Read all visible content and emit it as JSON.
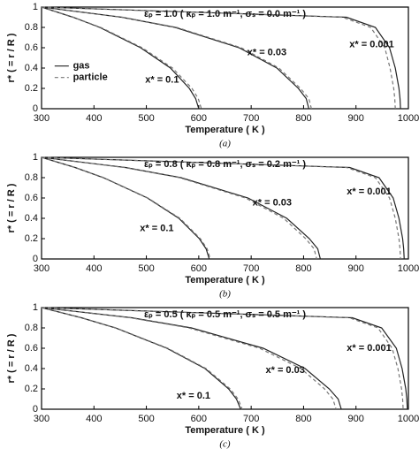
{
  "chart_data": [
    {
      "type": "line",
      "xlabel": "Temperature ( K )",
      "ylabel": "r* ( = r / R )",
      "caption": "(a)",
      "xlim": [
        300,
        1000
      ],
      "ylim": [
        0,
        1
      ],
      "xticks": [
        300,
        400,
        500,
        600,
        700,
        800,
        900,
        1000
      ],
      "yticks": [
        0,
        0.2,
        0.4,
        0.6,
        0.8,
        1
      ],
      "annotations": [
        "εₚ = 1.0 ( κₚ = 1.0 m⁻¹, σₛ = 0.0 m⁻¹ )",
        "x* = 0.1",
        "x* = 0.03",
        "x* = 0.001"
      ],
      "series": [
        {
          "name": "gas",
          "color": "#222222",
          "line_style": "solid",
          "x": [
            300,
            360,
            411,
            489,
            546,
            582,
            594,
            600
          ],
          "values": [
            1,
            0.9,
            0.8,
            0.6,
            0.4,
            0.2,
            0.1,
            0
          ]
        },
        {
          "name": "particle",
          "color": "#777777",
          "line_style": "dashed",
          "x": [
            300,
            361,
            413,
            492,
            550,
            587,
            599,
            605
          ],
          "values": [
            1,
            0.9,
            0.8,
            0.6,
            0.4,
            0.2,
            0.1,
            0
          ]
        },
        {
          "color": "#222222",
          "line_style": "solid",
          "x": [
            300,
            453,
            555,
            677,
            749,
            790,
            805,
            810
          ],
          "values": [
            1,
            0.9,
            0.8,
            0.6,
            0.4,
            0.2,
            0.1,
            0
          ]
        },
        {
          "color": "#777777",
          "line_style": "dashed",
          "x": [
            300,
            455,
            558,
            681,
            753,
            794,
            810,
            815
          ],
          "values": [
            1,
            0.9,
            0.8,
            0.6,
            0.4,
            0.2,
            0.1,
            0
          ]
        },
        {
          "color": "#222222",
          "line_style": "solid",
          "x": [
            300,
            882,
            937,
            964,
            975,
            982,
            984,
            985
          ],
          "values": [
            1,
            0.9,
            0.8,
            0.6,
            0.4,
            0.2,
            0.1,
            0
          ]
        },
        {
          "color": "#777777",
          "line_style": "dashed",
          "x": [
            300,
            874,
            928,
            955,
            965,
            972,
            974,
            975
          ],
          "values": [
            1,
            0.9,
            0.8,
            0.6,
            0.4,
            0.2,
            0.1,
            0
          ]
        }
      ]
    },
    {
      "type": "line",
      "xlabel": "Temperature ( K )",
      "ylabel": "r* ( = r / R )",
      "caption": "(b)",
      "xlim": [
        300,
        1000
      ],
      "ylim": [
        0,
        1
      ],
      "xticks": [
        300,
        400,
        500,
        600,
        700,
        800,
        900,
        1000
      ],
      "yticks": [
        0,
        0.2,
        0.4,
        0.6,
        0.8,
        1
      ],
      "annotations": [
        "εₚ = 0.8 ( κₚ = 0.8 m⁻¹, σₛ = 0.2 m⁻¹ )",
        "x* = 0.1",
        "x* = 0.03",
        "x* = 0.001"
      ],
      "series": [
        {
          "color": "#222222",
          "line_style": "solid",
          "x": [
            300,
            364,
            418,
            502,
            562,
            601,
            614,
            620
          ],
          "values": [
            1,
            0.9,
            0.8,
            0.6,
            0.4,
            0.2,
            0.1,
            0
          ]
        },
        {
          "color": "#777777",
          "line_style": "dashed",
          "x": [
            300,
            364,
            419,
            503,
            564,
            603,
            616,
            622
          ],
          "values": [
            1,
            0.9,
            0.8,
            0.6,
            0.4,
            0.2,
            0.1,
            0
          ]
        },
        {
          "color": "#222222",
          "line_style": "solid",
          "x": [
            300,
            460,
            566,
            694,
            768,
            811,
            827,
            832
          ],
          "values": [
            1,
            0.9,
            0.8,
            0.6,
            0.4,
            0.2,
            0.1,
            0
          ]
        },
        {
          "color": "#777777",
          "line_style": "dashed",
          "x": [
            300,
            458,
            563,
            689,
            762,
            804,
            820,
            825
          ],
          "values": [
            1,
            0.9,
            0.8,
            0.6,
            0.4,
            0.2,
            0.1,
            0
          ]
        },
        {
          "color": "#222222",
          "line_style": "solid",
          "x": [
            300,
            888,
            944,
            971,
            982,
            989,
            991,
            992
          ],
          "values": [
            1,
            0.9,
            0.8,
            0.6,
            0.4,
            0.2,
            0.1,
            0
          ]
        },
        {
          "color": "#777777",
          "line_style": "dashed",
          "x": [
            300,
            882,
            937,
            964,
            975,
            982,
            984,
            985
          ],
          "values": [
            1,
            0.9,
            0.8,
            0.6,
            0.4,
            0.2,
            0.1,
            0
          ]
        }
      ]
    },
    {
      "type": "line",
      "xlabel": "Temperature ( K )",
      "ylabel": "r* ( = r / R )",
      "caption": "(c)",
      "xlim": [
        300,
        1000
      ],
      "ylim": [
        0,
        1
      ],
      "xticks": [
        300,
        400,
        500,
        600,
        700,
        800,
        900,
        1000
      ],
      "yticks": [
        0,
        0.2,
        0.4,
        0.6,
        0.8,
        1
      ],
      "annotations": [
        "εₚ = 0.5 ( κₚ = 0.5 m⁻¹, σₛ = 0.5 m⁻¹ )",
        "x* = 0.1",
        "x* = 0.03",
        "x* = 0.001"
      ],
      "series": [
        {
          "color": "#222222",
          "line_style": "solid",
          "x": [
            300,
            376,
            441,
            539,
            612,
            657,
            672,
            680
          ],
          "values": [
            1,
            0.9,
            0.8,
            0.6,
            0.4,
            0.2,
            0.1,
            0
          ]
        },
        {
          "color": "#777777",
          "line_style": "dashed",
          "x": [
            300,
            377,
            442,
            541,
            614,
            660,
            675,
            683
          ],
          "values": [
            1,
            0.9,
            0.8,
            0.6,
            0.4,
            0.2,
            0.1,
            0
          ]
        },
        {
          "color": "#222222",
          "line_style": "solid",
          "x": [
            300,
            472,
            586,
            723,
            803,
            849,
            866,
            872
          ],
          "values": [
            1,
            0.9,
            0.8,
            0.6,
            0.4,
            0.2,
            0.1,
            0
          ]
        },
        {
          "color": "#777777",
          "line_style": "dashed",
          "x": [
            300,
            469,
            581,
            716,
            795,
            840,
            856,
            862
          ],
          "values": [
            1,
            0.9,
            0.8,
            0.6,
            0.4,
            0.2,
            0.1,
            0
          ]
        },
        {
          "color": "#222222",
          "line_style": "solid",
          "x": [
            300,
            893,
            949,
            977,
            988,
            995,
            997,
            998
          ],
          "values": [
            1,
            0.9,
            0.8,
            0.6,
            0.4,
            0.2,
            0.1,
            0
          ]
        },
        {
          "color": "#777777",
          "line_style": "dashed",
          "x": [
            300,
            887,
            942,
            969,
            980,
            987,
            989,
            990
          ],
          "values": [
            1,
            0.9,
            0.8,
            0.6,
            0.4,
            0.2,
            0.1,
            0
          ]
        }
      ]
    }
  ]
}
